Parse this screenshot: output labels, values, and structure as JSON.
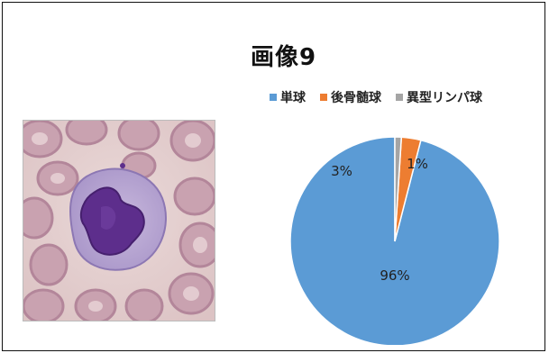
{
  "slide": {
    "title": "画像9"
  },
  "image": {
    "name": "blood-smear-micrograph"
  },
  "colors": {
    "monocyte": "#5B9BD5",
    "metamyelocyte": "#ED7D31",
    "atypical": "#A5A5A5"
  },
  "chart_data": {
    "type": "pie",
    "title": "",
    "legend_position": "top",
    "series": [
      {
        "name": "単球",
        "value": 96,
        "label": "96%"
      },
      {
        "name": "後骨髄球",
        "value": 3,
        "label": "3%"
      },
      {
        "name": "異型リンパ球",
        "value": 1,
        "label": "1%"
      }
    ]
  }
}
